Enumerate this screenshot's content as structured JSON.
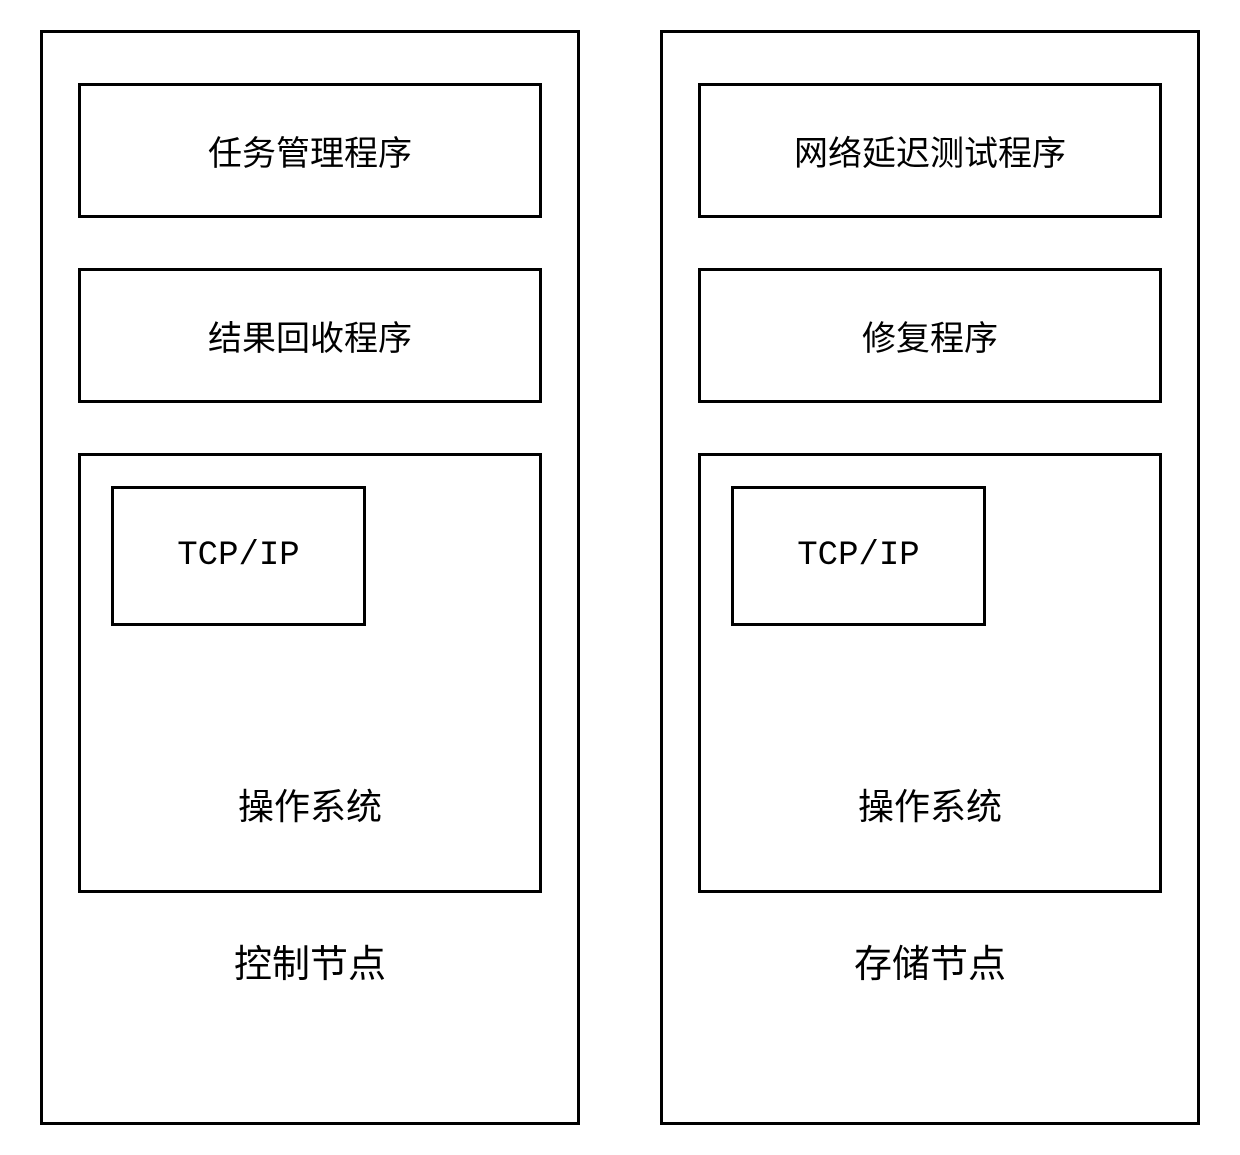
{
  "diagram": {
    "type": "flowchart",
    "background_color": "#ffffff",
    "border_color": "#000000",
    "border_width": 3,
    "font_family": "SimSun",
    "label_fontsize": 34,
    "node_label_fontsize": 38,
    "os_label_fontsize": 36,
    "nodes": [
      {
        "id": "control-node",
        "label": "控制节点",
        "boxes": [
          {
            "id": "task-manager",
            "label": "任务管理程序"
          },
          {
            "id": "result-collector",
            "label": "结果回收程序"
          }
        ],
        "os_box": {
          "label": "操作系统",
          "tcp_label": "TCP/IP"
        }
      },
      {
        "id": "storage-node",
        "label": "存储节点",
        "boxes": [
          {
            "id": "network-latency-test",
            "label": "网络延迟测试程序"
          },
          {
            "id": "repair-program",
            "label": "修复程序"
          }
        ],
        "os_box": {
          "label": "操作系统",
          "tcp_label": "TCP/IP"
        }
      }
    ]
  }
}
